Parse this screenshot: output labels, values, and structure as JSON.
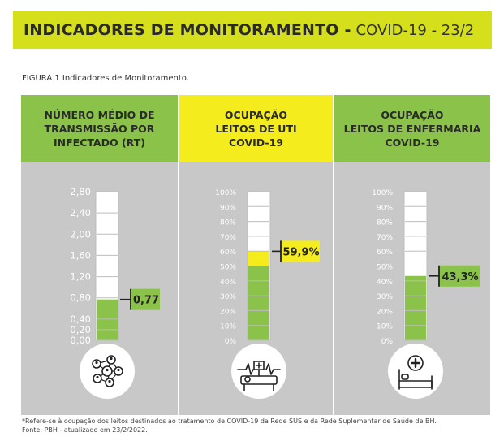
{
  "header": {
    "title_bold": "INDICADORES DE MONITORAMENTO -",
    "title_rest": "COVID-19 - 23/2",
    "accent": "#d6df1b"
  },
  "figure_caption": "FIGURA 1 Indicadores de Monitoramento.",
  "colors": {
    "green": "#8bc34a",
    "yellow": "#f4ec1c",
    "panel_bg": "#c8c8c8"
  },
  "chart_data": [
    {
      "type": "bar",
      "title": "NÚMERO MÉDIO DE\nTRANSMISSÃO POR\nINFECTADO (RT)",
      "header_color": "#8bc34a",
      "fill_color": "#8bc34a",
      "ylim": [
        0,
        2.8
      ],
      "ticks": [
        "0,00",
        "0,20",
        "0,40",
        "0,80",
        "1,20",
        "1,60",
        "2,00",
        "2,40",
        "2,80"
      ],
      "tick_values": [
        0,
        0.2,
        0.4,
        0.8,
        1.2,
        1.6,
        2.0,
        2.4,
        2.8
      ],
      "value": 0.77,
      "value_label": "0,77",
      "icon": "people-network-icon"
    },
    {
      "type": "bar",
      "title": "OCUPAÇÃO\nLEITOS DE UTI\nCOVID-19",
      "header_color": "#f4ec1c",
      "fill_color": "#8bc34a",
      "top_fill_color": "#f4ec1c",
      "ylim": [
        0,
        100
      ],
      "ticks": [
        "0%",
        "10%",
        "20%",
        "30%",
        "40%",
        "50%",
        "60%",
        "70%",
        "80%",
        "90%",
        "100%"
      ],
      "tick_values": [
        0,
        10,
        20,
        30,
        40,
        50,
        60,
        70,
        80,
        90,
        100
      ],
      "value": 59.9,
      "value_label": "59,9%",
      "icon": "icu-bed-monitor-icon"
    },
    {
      "type": "bar",
      "title": "OCUPAÇÃO\nLEITOS DE ENFERMARIA\nCOVID-19",
      "header_color": "#8bc34a",
      "fill_color": "#8bc34a",
      "ylim": [
        0,
        100
      ],
      "ticks": [
        "0%",
        "10%",
        "20%",
        "30%",
        "40%",
        "50%",
        "60%",
        "70%",
        "80%",
        "90%",
        "100%"
      ],
      "tick_values": [
        0,
        10,
        20,
        30,
        40,
        50,
        60,
        70,
        80,
        90,
        100
      ],
      "value": 43.3,
      "value_label": "43,3%",
      "icon": "ward-bed-icon"
    }
  ],
  "footnotes": [
    "*Refere-se à ocupação dos leitos destinados ao tratamento de COVID-19 da Rede SUS e da Rede Suplementar de Saúde de BH.",
    "Fonte: PBH - atualizado em 23/2/2022."
  ]
}
